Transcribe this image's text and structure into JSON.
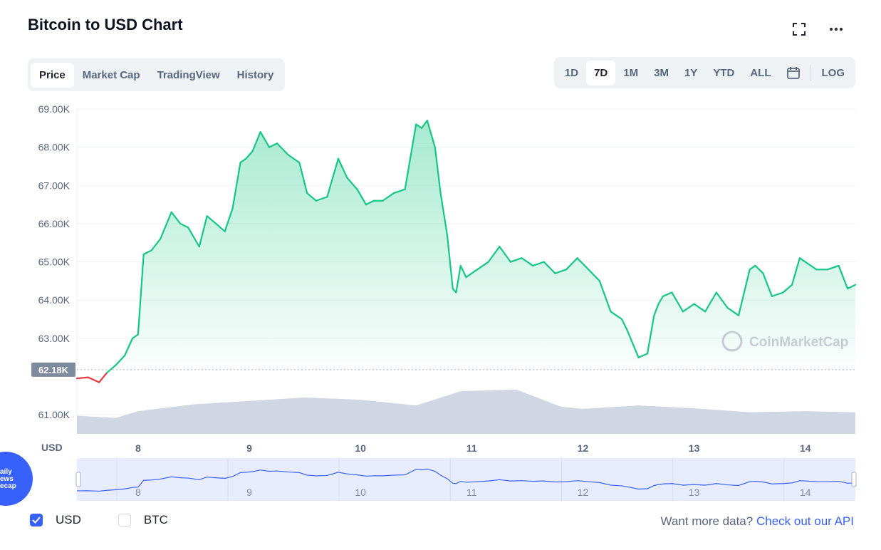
{
  "header": {
    "title": "Bitcoin to USD Chart",
    "tabs": [
      "Price",
      "Market Cap",
      "TradingView",
      "History"
    ],
    "active_tab": "Price",
    "ranges": [
      "1D",
      "7D",
      "1M",
      "3M",
      "1Y",
      "YTD",
      "ALL"
    ],
    "active_range": "7D",
    "log_label": "LOG"
  },
  "chart_data": {
    "type": "area",
    "currency_label": "USD",
    "y_ticks": [
      "69.00K",
      "68.00K",
      "67.00K",
      "66.00K",
      "65.00K",
      "64.00K",
      "63.00K",
      "61.00K"
    ],
    "ylim": [
      60.5,
      69.0
    ],
    "x_ticks": [
      "8",
      "9",
      "10",
      "11",
      "12",
      "13",
      "14"
    ],
    "xlim": [
      7.45,
      14.45
    ],
    "open_price_label": "62.18K",
    "open_price": 62.18,
    "watermark": "CoinMarketCap",
    "grid": true,
    "series": [
      {
        "x": [
          7.45,
          7.55,
          7.65,
          7.72,
          7.8,
          7.88,
          7.95,
          8.0,
          8.05,
          8.12,
          8.2,
          8.3,
          8.38,
          8.45,
          8.55,
          8.62,
          8.7,
          8.78,
          8.85,
          8.92,
          8.97,
          9.03,
          9.1,
          9.18,
          9.25,
          9.35,
          9.45,
          9.52,
          9.6,
          9.7,
          9.8,
          9.88,
          9.97,
          10.05,
          10.12,
          10.2,
          10.3,
          10.4,
          10.5,
          10.55,
          10.6,
          10.67,
          10.72,
          10.78,
          10.83,
          10.86,
          10.9,
          10.95,
          11.05,
          11.15,
          11.25,
          11.35,
          11.45,
          11.55,
          11.65,
          11.75,
          11.85,
          11.95,
          12.05,
          12.15,
          12.25,
          12.35,
          12.4,
          12.5,
          12.58,
          12.64,
          12.68,
          12.72,
          12.8,
          12.9,
          13.0,
          13.1,
          13.2,
          13.3,
          13.4,
          13.5,
          13.55,
          13.62,
          13.7,
          13.8,
          13.88,
          13.95,
          14.05,
          14.1,
          14.2,
          14.3,
          14.38,
          14.45
        ],
        "values": [
          61.95,
          61.98,
          61.85,
          62.1,
          62.3,
          62.55,
          63.0,
          63.1,
          65.2,
          65.3,
          65.6,
          66.3,
          66.0,
          65.9,
          65.4,
          66.2,
          66.0,
          65.8,
          66.4,
          67.6,
          67.7,
          67.9,
          68.4,
          68.0,
          68.1,
          67.8,
          67.6,
          66.8,
          66.6,
          66.7,
          67.7,
          67.2,
          66.9,
          66.5,
          66.6,
          66.6,
          66.8,
          66.9,
          68.6,
          68.5,
          68.7,
          68.0,
          66.8,
          65.7,
          64.3,
          64.2,
          64.9,
          64.6,
          64.8,
          65.0,
          65.4,
          65.0,
          65.1,
          64.9,
          65.0,
          64.7,
          64.8,
          65.1,
          64.8,
          64.5,
          63.7,
          63.5,
          63.2,
          62.5,
          62.6,
          63.6,
          63.9,
          64.1,
          64.2,
          63.7,
          63.9,
          63.7,
          64.2,
          63.8,
          63.6,
          64.8,
          64.9,
          64.7,
          64.1,
          64.2,
          64.4,
          65.1,
          64.9,
          64.8,
          64.8,
          64.9,
          64.3,
          64.4
        ]
      }
    ],
    "volume": {
      "x": [
        7.45,
        7.8,
        8.0,
        8.5,
        9.0,
        9.5,
        10.0,
        10.5,
        10.9,
        11.4,
        11.8,
        12.0,
        12.5,
        13.0,
        13.5,
        14.0,
        14.45
      ],
      "values": [
        0.32,
        0.28,
        0.4,
        0.52,
        0.58,
        0.64,
        0.6,
        0.5,
        0.75,
        0.78,
        0.48,
        0.44,
        0.5,
        0.45,
        0.38,
        0.4,
        0.38
      ]
    },
    "navigator": {
      "x_ticks": [
        "8",
        "9",
        "10",
        "11",
        "12",
        "13",
        "14"
      ]
    }
  },
  "footer": {
    "options": [
      "USD",
      "BTC"
    ],
    "checked": "USD",
    "api_prefix": "Want more data?",
    "api_link": "Check out our API"
  },
  "badge_text": [
    "aily",
    "ews",
    "ecap"
  ],
  "colors": {
    "up": "#16c784",
    "down": "#ea3943",
    "accent": "#3861fb",
    "volume": "#d1d7e2",
    "navigator": "#e8ecff"
  }
}
